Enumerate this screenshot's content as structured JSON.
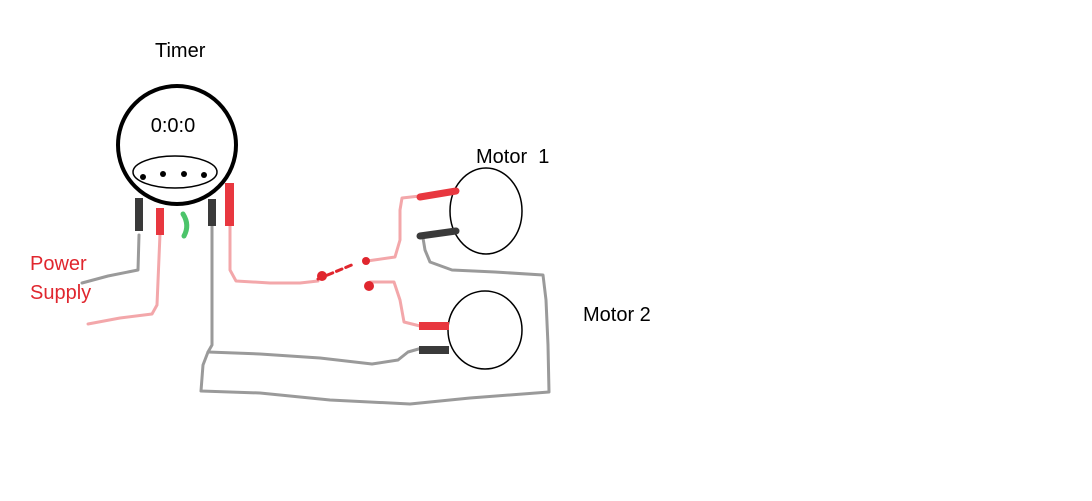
{
  "labels": {
    "timer": "Timer",
    "timer_display": "0:0:0",
    "motor1": "Motor  1",
    "motor2": "Motor 2",
    "power_line1": "Power",
    "power_line2": "Supply"
  },
  "colors": {
    "background": "#ffffff",
    "outline": "#000000",
    "lead_red": "#e8373f",
    "lead_black": "#3a3a3a",
    "wire_pink": "#f3a7aa",
    "wire_gray": "#9a9a9a",
    "lead_green": "#4cc46a",
    "label_red": "#e0262e",
    "switch_red": "#e0262e"
  }
}
